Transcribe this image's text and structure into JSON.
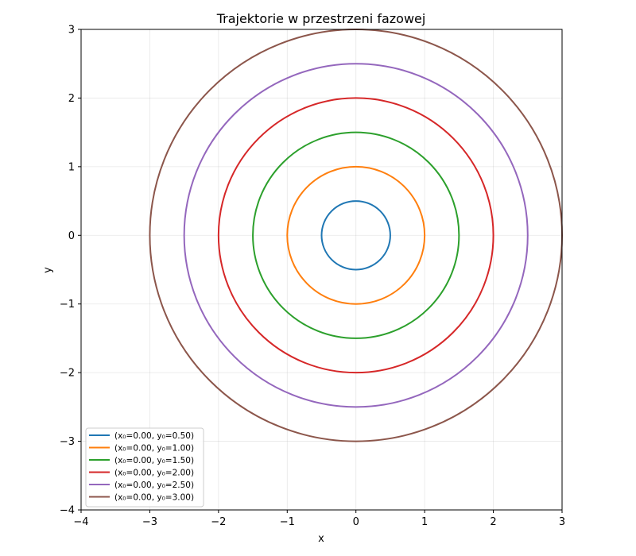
{
  "chart_data": {
    "type": "line",
    "title": "Trajektorie w przestrzeni fazowej",
    "xlabel": "x",
    "ylabel": "y",
    "xlim": [
      -4,
      3
    ],
    "ylim": [
      -4,
      3
    ],
    "xticks": [
      -4,
      -3,
      -2,
      -1,
      0,
      1,
      2,
      3
    ],
    "yticks": [
      -4,
      -3,
      -2,
      -1,
      0,
      1,
      2,
      3
    ],
    "xtick_labels": [
      "−4",
      "−3",
      "−2",
      "−1",
      "0",
      "1",
      "2",
      "3"
    ],
    "ytick_labels": [
      "−4",
      "−3",
      "−2",
      "−1",
      "0",
      "1",
      "2",
      "3"
    ],
    "grid": true,
    "legend_position": "lower-left",
    "series": [
      {
        "name": "(x₀=0.00, y₀=0.50)",
        "color": "#1f77b4",
        "center": [
          0,
          0
        ],
        "radius": 0.5
      },
      {
        "name": "(x₀=0.00, y₀=1.00)",
        "color": "#ff7f0e",
        "center": [
          0,
          0
        ],
        "radius": 1.0
      },
      {
        "name": "(x₀=0.00, y₀=1.50)",
        "color": "#2ca02c",
        "center": [
          0,
          0
        ],
        "radius": 1.5
      },
      {
        "name": "(x₀=0.00, y₀=2.00)",
        "color": "#d62728",
        "center": [
          0,
          0
        ],
        "radius": 2.0
      },
      {
        "name": "(x₀=0.00, y₀=2.50)",
        "color": "#9467bd",
        "center": [
          0,
          0
        ],
        "radius": 2.5
      },
      {
        "name": "(x₀=0.00, y₀=3.00)",
        "color": "#8c564b",
        "center": [
          0,
          0
        ],
        "radius": 3.0
      }
    ]
  }
}
